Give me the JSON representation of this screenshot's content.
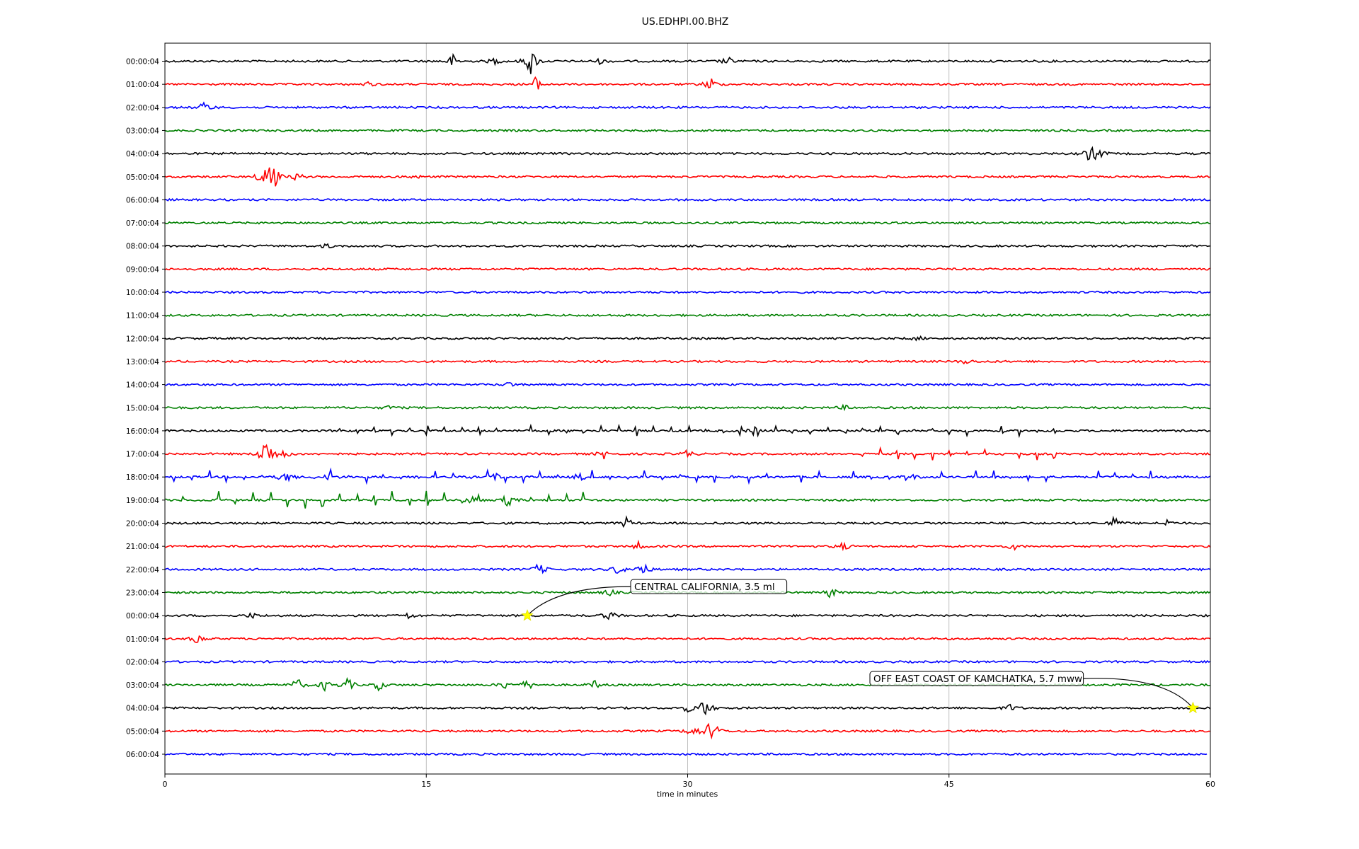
{
  "chart_data": {
    "type": "line",
    "title": "US.EDHPI.00.BHZ",
    "xlabel": "time in minutes",
    "ylabel": "",
    "xlim": [
      0,
      60
    ],
    "xticks": [
      0,
      15,
      30,
      45,
      60
    ],
    "grid": "vertical",
    "colors": [
      "#000000",
      "#ff0000",
      "#0000ff",
      "#008000"
    ],
    "rows": [
      {
        "label": "00:00:04",
        "events": [
          [
            16.5,
            10
          ],
          [
            18.9,
            5
          ],
          [
            21.0,
            22
          ],
          [
            25,
            4
          ],
          [
            32.3,
            6
          ]
        ]
      },
      {
        "label": "01:00:04",
        "events": [
          [
            11.7,
            3
          ],
          [
            21.3,
            11
          ],
          [
            31.3,
            11
          ]
        ]
      },
      {
        "label": "02:00:04",
        "events": [
          [
            2.3,
            9
          ]
        ]
      },
      {
        "label": "03:00:04",
        "events": []
      },
      {
        "label": "04:00:04",
        "events": [
          [
            53.1,
            12
          ],
          [
            53.6,
            8
          ]
        ]
      },
      {
        "label": "05:00:04",
        "events": [
          [
            5.8,
            28
          ],
          [
            6.2,
            22
          ],
          [
            7.6,
            6
          ],
          [
            14.3,
            3
          ]
        ]
      },
      {
        "label": "06:00:04",
        "events": []
      },
      {
        "label": "07:00:04",
        "events": []
      },
      {
        "label": "08:00:04",
        "events": [
          [
            9.3,
            3
          ]
        ]
      },
      {
        "label": "09:00:04",
        "events": []
      },
      {
        "label": "10:00:04",
        "events": []
      },
      {
        "label": "11:00:04",
        "events": []
      },
      {
        "label": "12:00:04",
        "events": [
          [
            43.2,
            3
          ]
        ]
      },
      {
        "label": "13:00:04",
        "events": [
          [
            46.0,
            4
          ]
        ]
      },
      {
        "label": "14:00:04",
        "events": [
          [
            19.8,
            4
          ]
        ]
      },
      {
        "label": "15:00:04",
        "events": [
          [
            12.9,
            3
          ],
          [
            39.0,
            3
          ]
        ]
      },
      {
        "label": "16:00:04",
        "events": [
          [
            33.8,
            6
          ]
        ]
      },
      {
        "label": "17:00:04",
        "events": [
          [
            5.8,
            30
          ],
          [
            6.8,
            8
          ],
          [
            25.2,
            6
          ],
          [
            30.0,
            6
          ]
        ]
      },
      {
        "label": "18:00:04",
        "events": [
          [
            7.0,
            8
          ],
          [
            9.5,
            6
          ],
          [
            19.0,
            5
          ],
          [
            23.9,
            5
          ],
          [
            42.8,
            5
          ]
        ]
      },
      {
        "label": "19:00:04",
        "events": [
          [
            17.6,
            6
          ],
          [
            19.7,
            10
          ]
        ]
      },
      {
        "label": "20:00:04",
        "events": [
          [
            26.5,
            8
          ],
          [
            54.5,
            10
          ],
          [
            57.5,
            5
          ]
        ]
      },
      {
        "label": "21:00:04",
        "events": [
          [
            27.2,
            6
          ],
          [
            38.9,
            6
          ],
          [
            48.7,
            5
          ]
        ]
      },
      {
        "label": "22:00:04",
        "events": [
          [
            21.5,
            10
          ],
          [
            26.0,
            8
          ],
          [
            27.4,
            12
          ]
        ]
      },
      {
        "label": "23:00:04",
        "events": [
          [
            25.5,
            5
          ],
          [
            38.2,
            8
          ]
        ]
      },
      {
        "label": "00:00:04",
        "events": [
          [
            5.0,
            4
          ],
          [
            14.0,
            5
          ],
          [
            25.5,
            8
          ]
        ]
      },
      {
        "label": "01:00:04",
        "events": [
          [
            1.9,
            8
          ]
        ]
      },
      {
        "label": "02:00:04",
        "events": []
      },
      {
        "label": "03:00:04",
        "events": [
          [
            7.6,
            10
          ],
          [
            9.2,
            8
          ],
          [
            10.5,
            10
          ],
          [
            12.3,
            8
          ],
          [
            19.5,
            6
          ],
          [
            20.8,
            8
          ],
          [
            24.7,
            6
          ]
        ]
      },
      {
        "label": "04:00:04",
        "events": [
          [
            30.0,
            6
          ],
          [
            31.0,
            16
          ],
          [
            48.5,
            5
          ]
        ]
      },
      {
        "label": "05:00:04",
        "events": [
          [
            30.3,
            10
          ],
          [
            31.4,
            22
          ]
        ]
      },
      {
        "label": "06:00:04",
        "events": []
      }
    ],
    "spike_trains": [
      {
        "row": 16,
        "start": 10,
        "end": 52,
        "step": 1,
        "height": 6,
        "up": true
      },
      {
        "row": 17,
        "start": 40,
        "end": 52,
        "step": 1,
        "height": 8,
        "up": true
      },
      {
        "row": 18,
        "start": 0.5,
        "end": 59.5,
        "step": 1,
        "height": 8,
        "up": true
      },
      {
        "row": 19,
        "start": 1,
        "end": 25,
        "step": 1,
        "height": 12,
        "up": true
      }
    ],
    "annotations": [
      {
        "text": "CENTRAL CALIFORNIA, 3.5 ml",
        "row": 24,
        "x": 20.8
      },
      {
        "text": "OFF EAST COAST OF KAMCHATKA, 5.7 mww",
        "row": 28,
        "x": 59.0
      }
    ]
  }
}
